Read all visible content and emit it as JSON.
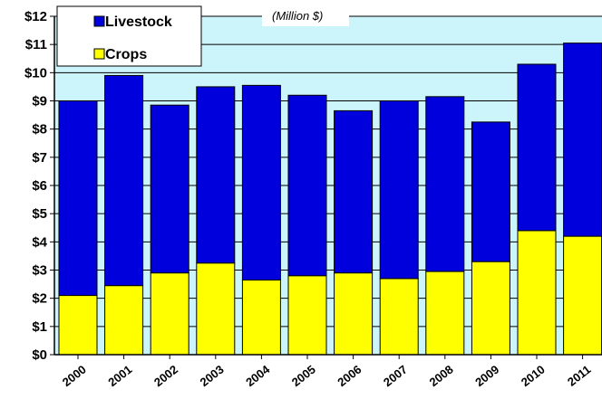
{
  "subtitle": "(Million $)",
  "colors": {
    "plot_background": "#ccf5fb",
    "crops": "#ffff00",
    "livestock": "#0000dd"
  },
  "chart_data": {
    "type": "bar",
    "stacked": true,
    "categories": [
      "2000",
      "2001",
      "2002",
      "2003",
      "2004",
      "2005",
      "2006",
      "2007",
      "2008",
      "2009",
      "2010",
      "2011"
    ],
    "series": [
      {
        "name": "Crops",
        "values": [
          2.1,
          2.45,
          2.9,
          3.25,
          2.65,
          2.8,
          2.9,
          2.7,
          2.95,
          3.3,
          4.4,
          4.2
        ]
      },
      {
        "name": "Livestock",
        "values": [
          6.9,
          7.45,
          5.95,
          6.25,
          6.9,
          6.4,
          5.75,
          6.3,
          6.2,
          4.95,
          5.9,
          6.85
        ]
      }
    ],
    "y_tick_labels": [
      "$0",
      "$1",
      "$2",
      "$3",
      "$4",
      "$5",
      "$6",
      "$7",
      "$8",
      "$9",
      "$10",
      "$11",
      "$12"
    ],
    "ylim": [
      0,
      12
    ],
    "grid": true,
    "legend": {
      "placement": "top-left",
      "entries": [
        "Livestock",
        "Crops"
      ]
    }
  }
}
